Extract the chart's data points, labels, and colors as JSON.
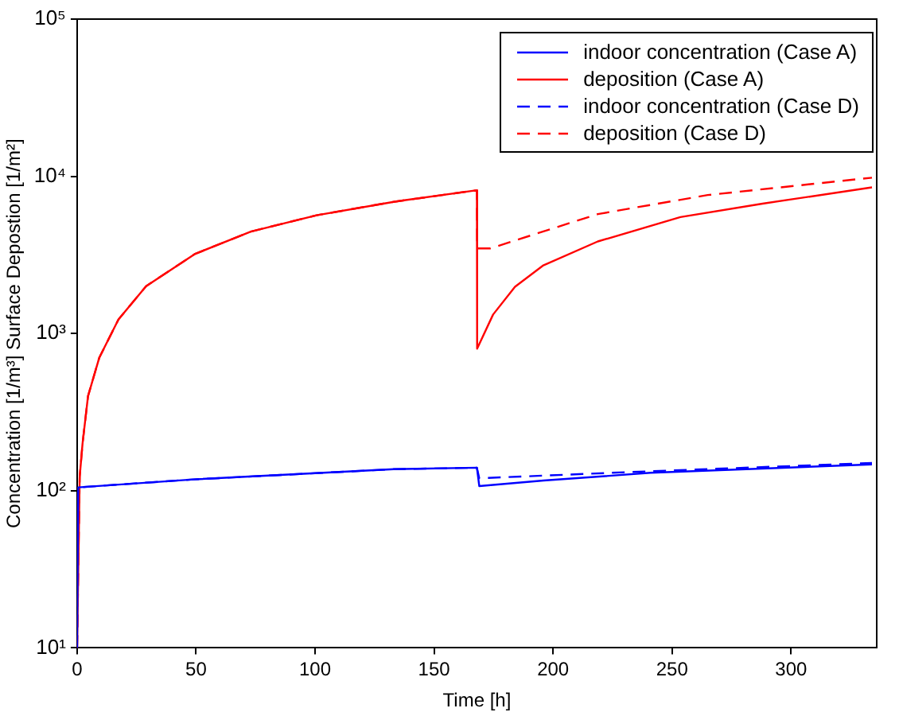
{
  "chart_data": {
    "type": "line",
    "xlabel": "Time [h]",
    "ylabel": "Concentration [1/m³] Surface Depostion [1/m²]",
    "log": "y",
    "xlim": [
      0,
      336
    ],
    "xticks": [
      0,
      50,
      100,
      150,
      200,
      250,
      300
    ],
    "ylim": [
      10,
      100000
    ],
    "yticks": [
      {
        "value": 10,
        "label": "10¹"
      },
      {
        "value": 100,
        "label": "10²"
      },
      {
        "value": 1000,
        "label": "10³"
      },
      {
        "value": 10000,
        "label": "10⁴"
      },
      {
        "value": 100000,
        "label": "10⁵"
      }
    ],
    "grid": false,
    "legend": "top right",
    "marker": "none",
    "series": [
      {
        "name": "indoor concentration (Case A)",
        "color": "#0000ff",
        "line_style": "solid",
        "x": [
          0,
          0.5,
          49,
          133,
          168,
          169,
          196,
          241,
          334
        ],
        "values": [
          10,
          105,
          118,
          137,
          140,
          107,
          116,
          130,
          147
        ]
      },
      {
        "name": "deposition (Case A)",
        "color": "#ff0000",
        "line_style": "solid",
        "x": [
          0,
          1.1,
          2.3,
          4.6,
          9.3,
          17.4,
          29,
          49.4,
          73,
          100.6,
          133.5,
          168,
          168.1,
          174.8,
          184,
          195.7,
          218.8,
          253.5,
          288,
          334
        ],
        "values": [
          10,
          123,
          200,
          400,
          700,
          1230,
          2000,
          3200,
          4450,
          5650,
          6900,
          8150,
          800,
          1320,
          1980,
          2700,
          3850,
          5500,
          6700,
          8500
        ]
      },
      {
        "name": "indoor concentration (Case D)",
        "color": "#0000ff",
        "line_style": "dashed",
        "x": [
          0,
          0.5,
          49,
          133,
          168,
          169,
          241,
          334
        ],
        "values": [
          10,
          105,
          118,
          137,
          140,
          120,
          133,
          150
        ]
      },
      {
        "name": "deposition (Case D)",
        "color": "#ff0000",
        "line_style": "dashed",
        "x": [
          0,
          1.1,
          2.3,
          4.6,
          9.3,
          17.4,
          29,
          49.4,
          73,
          100.6,
          133.5,
          168,
          168.1,
          173.7,
          218.8,
          265,
          334
        ],
        "values": [
          10,
          123,
          200,
          400,
          700,
          1230,
          2000,
          3200,
          4450,
          5650,
          6900,
          8150,
          3480,
          3480,
          5750,
          7600,
          9800
        ]
      }
    ]
  }
}
